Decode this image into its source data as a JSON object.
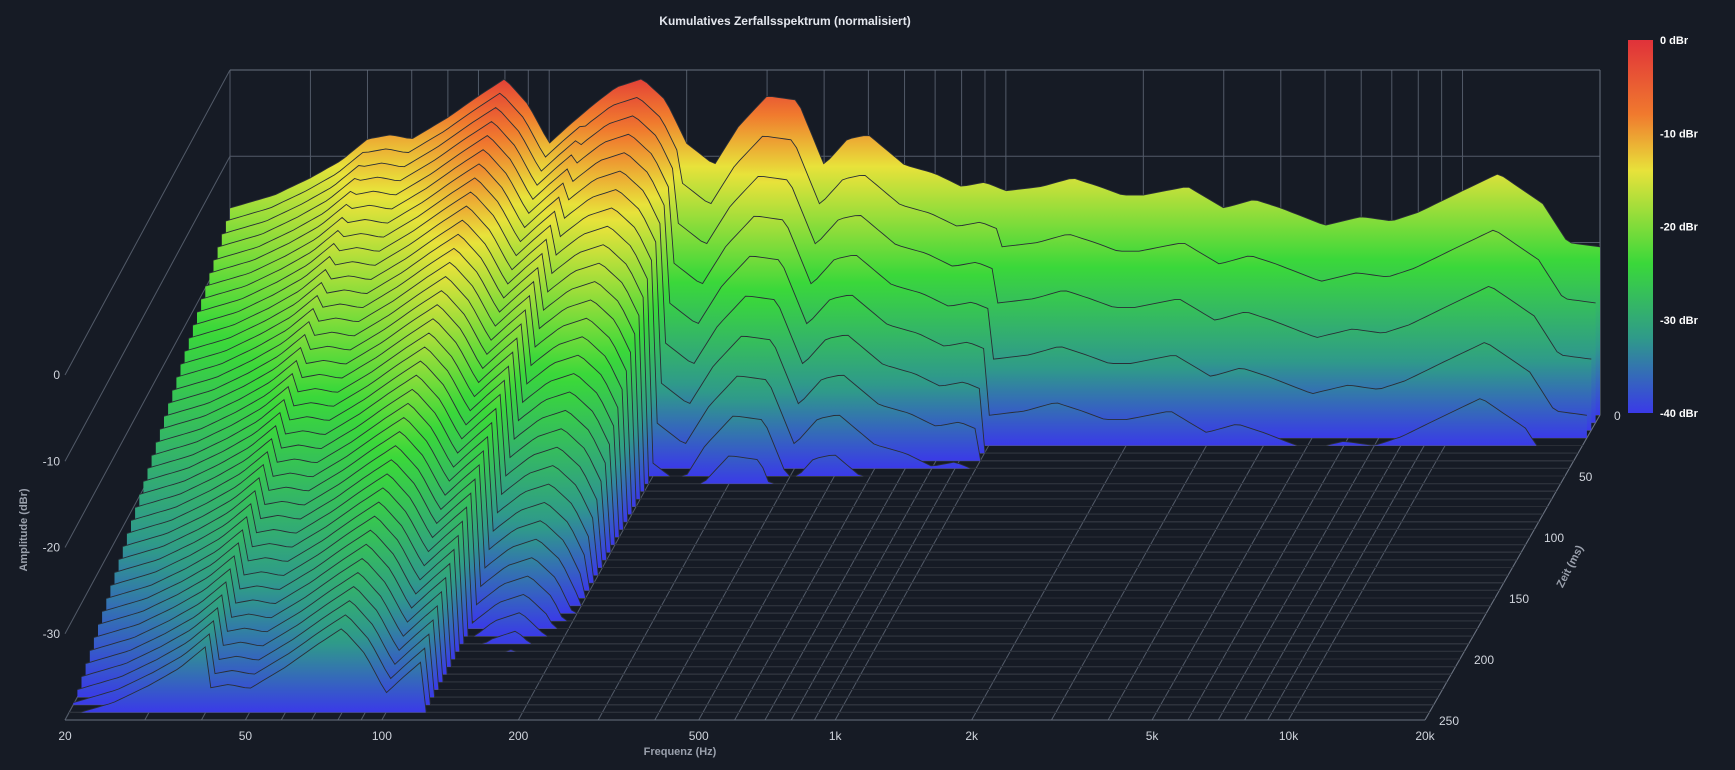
{
  "chart_data": {
    "type": "waterfall-3d",
    "title": "Kumulatives Zerfallsspektrum (normalisiert)",
    "xlabel": "Frequenz (Hz)",
    "ylabel": "Amplitude (dBr)",
    "zlabel": "Zeit (ms)",
    "x_scale": "log",
    "xlim": [
      20,
      20000
    ],
    "x_ticks": [
      20,
      50,
      100,
      200,
      500,
      1000,
      2000,
      5000,
      10000,
      20000
    ],
    "x_tick_labels": [
      "20",
      "50",
      "100",
      "200",
      "500",
      "1k",
      "2k",
      "5k",
      "10k",
      "20k"
    ],
    "ylim": [
      -40,
      0
    ],
    "y_ticks": [
      0,
      -10,
      -20,
      -30
    ],
    "y_tick_labels": [
      "0",
      "-10",
      "-20",
      "-30"
    ],
    "zlim": [
      0,
      250
    ],
    "z_ticks": [
      0,
      50,
      100,
      150,
      200,
      250
    ],
    "z_tick_labels": [
      "0",
      "50",
      "100",
      "150",
      "200",
      "250"
    ],
    "colorbar": {
      "range": [
        -40,
        0
      ],
      "ticks": [
        0,
        -10,
        -20,
        -30,
        -40
      ],
      "tick_labels": [
        "0 dBr",
        "-10 dBr",
        "-20 dBr",
        "-30 dBr",
        "-40 dBr"
      ],
      "colors": [
        "#e0323a",
        "#f07a2e",
        "#e8e23a",
        "#3ad83a",
        "#2f9a8a",
        "#3a3ae8"
      ]
    },
    "slices": {
      "count": 40,
      "time_step_ms": 6.25,
      "initial_response": {
        "frequencies_hz": [
          20,
          25,
          30,
          35,
          40,
          45,
          50,
          60,
          70,
          80,
          90,
          100,
          110,
          125,
          140,
          160,
          180,
          200,
          230,
          260,
          300,
          350,
          400,
          450,
          500,
          600,
          700,
          800,
          900,
          1000,
          1200,
          1400,
          1600,
          1800,
          2000,
          2500,
          3000,
          3500,
          4000,
          5000,
          6000,
          7000,
          8000,
          10000,
          12000,
          15000,
          17000,
          20000
        ],
        "amplitudes_dbr": [
          -16.0,
          -14.5,
          -12.5,
          -10.5,
          -8.0,
          -7.5,
          -8.0,
          -5.5,
          -3.0,
          -1.0,
          -4.0,
          -8.5,
          -6.5,
          -4.0,
          -2.0,
          -1.0,
          -3.5,
          -8.5,
          -11.0,
          -6.5,
          -3.0,
          -3.5,
          -11.0,
          -8.0,
          -7.5,
          -11.0,
          -12.0,
          -13.5,
          -13.0,
          -14.0,
          -13.5,
          -12.5,
          -13.5,
          -14.5,
          -14.5,
          -13.5,
          -16.0,
          -15.0,
          -16.0,
          -18.0,
          -17.0,
          -17.5,
          -16.5,
          -14.0,
          -12.0,
          -15.5,
          -20.0,
          -20.5
        ]
      },
      "decay_dB_per_ms_bands": [
        {
          "from_hz": 20,
          "to_hz": 40,
          "decay": 0.1
        },
        {
          "from_hz": 40,
          "to_hz": 120,
          "decay": 0.12
        },
        {
          "from_hz": 120,
          "to_hz": 200,
          "decay": 0.2
        },
        {
          "from_hz": 200,
          "to_hz": 1000,
          "decay": 0.6
        },
        {
          "from_hz": 1000,
          "to_hz": 20000,
          "decay": 0.9
        }
      ]
    }
  }
}
